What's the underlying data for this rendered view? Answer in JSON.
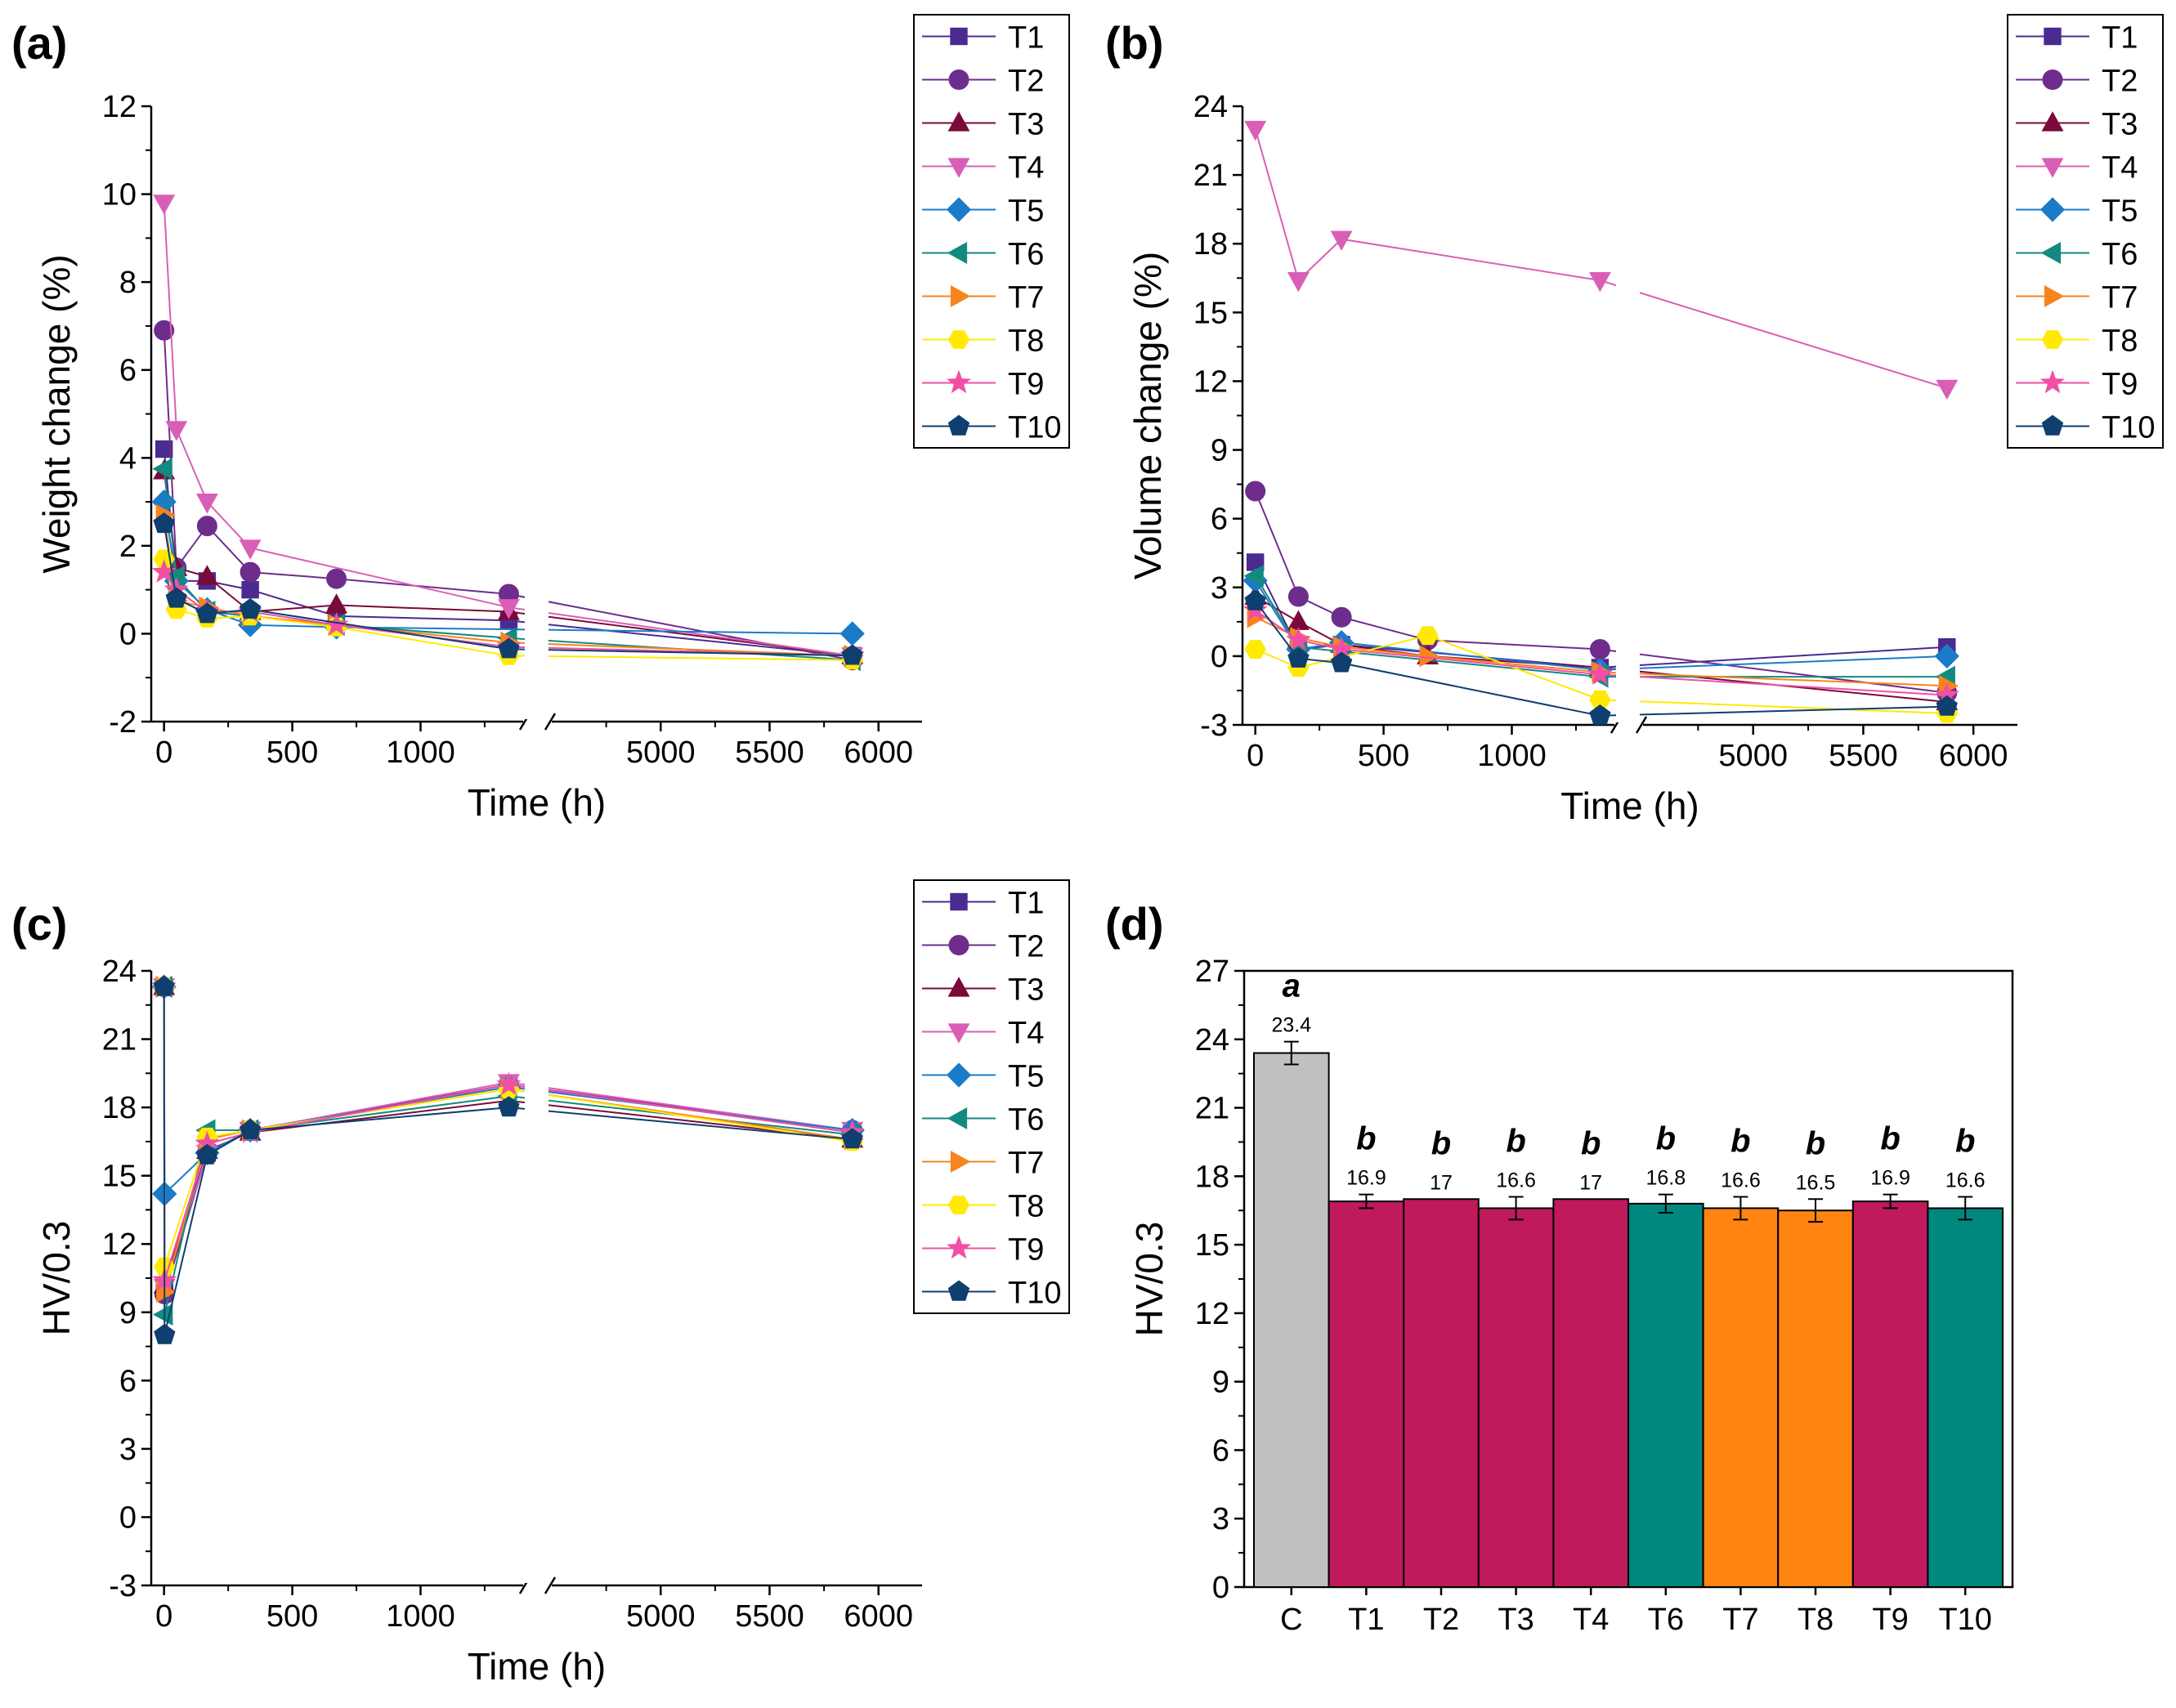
{
  "panels": {
    "a": {
      "label": "(a)"
    },
    "b": {
      "label": "(b)"
    },
    "c": {
      "label": "(c)"
    },
    "d": {
      "label": "(d)"
    }
  },
  "series_styles": [
    {
      "name": "T1",
      "color": "#4B2A91",
      "marker": "square"
    },
    {
      "name": "T2",
      "color": "#6E2D8C",
      "marker": "circle"
    },
    {
      "name": "T3",
      "color": "#7A0A3A",
      "marker": "triangle-up"
    },
    {
      "name": "T4",
      "color": "#D95FB6",
      "marker": "triangle-down"
    },
    {
      "name": "T5",
      "color": "#1A7BC9",
      "marker": "diamond"
    },
    {
      "name": "T6",
      "color": "#138A80",
      "marker": "triangle-left"
    },
    {
      "name": "T7",
      "color": "#F7841F",
      "marker": "triangle-right"
    },
    {
      "name": "T8",
      "color": "#FFEA00",
      "marker": "hexagon"
    },
    {
      "name": "T9",
      "color": "#F04FA5",
      "marker": "star"
    },
    {
      "name": "T10",
      "color": "#0E3F6E",
      "marker": "pentagon"
    }
  ],
  "chart_data": [
    {
      "id": "a",
      "type": "line",
      "xlabel": "Time (h)",
      "ylabel": "Weight change (%)",
      "ylim": [
        -2,
        12
      ],
      "yticks": [
        -2,
        0,
        2,
        4,
        6,
        8,
        10,
        12
      ],
      "x_break": {
        "left_range": [
          -50,
          1400
        ],
        "right_range": [
          4500,
          6200
        ]
      },
      "xticks": [
        "0",
        "500",
        "1000",
        "5000",
        "5500",
        "6000"
      ],
      "xtick_values": [
        0,
        500,
        1000,
        5000,
        5500,
        6000
      ],
      "x": [
        0,
        48,
        168,
        336,
        672,
        1344,
        5880
      ],
      "series": [
        {
          "name": "T1",
          "values": [
            4.2,
            1.2,
            1.2,
            1.0,
            0.4,
            0.3,
            -0.5
          ]
        },
        {
          "name": "T2",
          "values": [
            6.9,
            1.5,
            2.45,
            1.4,
            1.25,
            0.9,
            -0.6
          ]
        },
        {
          "name": "T3",
          "values": [
            3.7,
            1.5,
            1.3,
            0.5,
            0.65,
            0.5,
            -0.5
          ]
        },
        {
          "name": "T4",
          "values": [
            9.8,
            4.65,
            3.0,
            1.95,
            null,
            0.6,
            -0.5
          ]
        },
        {
          "name": "T5",
          "values": [
            3.0,
            1.2,
            0.55,
            0.2,
            0.15,
            null,
            0.0
          ]
        },
        {
          "name": "T6",
          "values": [
            3.75,
            1.3,
            0.5,
            0.4,
            0.2,
            -0.1,
            -0.6
          ]
        },
        {
          "name": "T7",
          "values": [
            2.7,
            0.75,
            0.6,
            0.4,
            0.2,
            -0.2,
            -0.5
          ]
        },
        {
          "name": "T8",
          "values": [
            1.7,
            0.55,
            0.35,
            0.4,
            0.15,
            -0.5,
            -0.6
          ]
        },
        {
          "name": "T9",
          "values": [
            1.4,
            1.0,
            0.5,
            0.5,
            0.2,
            -0.3,
            -0.5
          ]
        },
        {
          "name": "T10",
          "values": [
            2.5,
            0.8,
            0.45,
            0.55,
            null,
            -0.35,
            -0.5
          ]
        }
      ]
    },
    {
      "id": "b",
      "type": "line",
      "xlabel": "Time (h)",
      "ylabel": "Volume change (%)",
      "ylim": [
        -3,
        24
      ],
      "yticks": [
        -3,
        0,
        3,
        6,
        9,
        12,
        15,
        18,
        21,
        24
      ],
      "x_break": {
        "left_range": [
          -50,
          1400
        ],
        "right_range": [
          4500,
          6200
        ]
      },
      "xticks": [
        "0",
        "500",
        "1000",
        "5000",
        "5500",
        "6000"
      ],
      "xtick_values": [
        0,
        500,
        1000,
        5000,
        5500,
        6000
      ],
      "x": [
        0,
        168,
        336,
        672,
        1344,
        5880
      ],
      "series": [
        {
          "name": "T1",
          "values": [
            4.1,
            0.3,
            0.5,
            null,
            -0.5,
            0.4
          ]
        },
        {
          "name": "T2",
          "values": [
            7.2,
            2.6,
            1.7,
            0.7,
            0.3,
            -1.6
          ]
        },
        {
          "name": "T3",
          "values": [
            2.6,
            1.5,
            0.5,
            0.0,
            -0.5,
            -2.0
          ]
        },
        {
          "name": "T4",
          "values": [
            23.0,
            16.4,
            18.2,
            null,
            16.4,
            11.7
          ]
        },
        {
          "name": "T5",
          "values": [
            3.3,
            0.3,
            0.6,
            null,
            -0.6,
            0.0
          ]
        },
        {
          "name": "T6",
          "values": [
            3.5,
            0.4,
            0.2,
            null,
            -0.9,
            -0.9
          ]
        },
        {
          "name": "T7",
          "values": [
            1.7,
            0.8,
            0.4,
            0.0,
            -0.7,
            -1.3
          ]
        },
        {
          "name": "T8",
          "values": [
            0.3,
            -0.5,
            null,
            0.9,
            -1.9,
            -2.5
          ]
        },
        {
          "name": "T9",
          "values": [
            2.0,
            0.7,
            0.3,
            null,
            -0.8,
            -1.7
          ]
        },
        {
          "name": "T10",
          "values": [
            2.4,
            -0.1,
            -0.3,
            null,
            -2.6,
            -2.2
          ]
        }
      ]
    },
    {
      "id": "c",
      "type": "line",
      "xlabel": "Time (h)",
      "ylabel": "HV/0.3",
      "ylim": [
        -3,
        24
      ],
      "yticks": [
        -3,
        0,
        3,
        6,
        9,
        12,
        15,
        18,
        21,
        24
      ],
      "x_break": {
        "left_range": [
          -50,
          1400
        ],
        "right_range": [
          4500,
          6200
        ]
      },
      "xticks": [
        "0",
        "500",
        "1000",
        "5000",
        "5500",
        "6000"
      ],
      "xtick_values": [
        0,
        500,
        1000,
        5000,
        5500,
        6000
      ],
      "x": [
        0,
        2,
        168,
        336,
        1344,
        5880
      ],
      "series": [
        {
          "name": "T1",
          "values": [
            23.3,
            10.0,
            16.0,
            17.0,
            19.0,
            16.9
          ]
        },
        {
          "name": "T2",
          "values": [
            23.3,
            9.8,
            16.0,
            17.0,
            19.0,
            17.0
          ]
        },
        {
          "name": "T3",
          "values": [
            23.3,
            10.2,
            16.1,
            16.9,
            18.3,
            16.6
          ]
        },
        {
          "name": "T4",
          "values": [
            23.3,
            10.1,
            16.0,
            17.0,
            19.1,
            17.0
          ]
        },
        {
          "name": "T5",
          "values": [
            23.3,
            14.2,
            16.0,
            17.0,
            18.9,
            17.0
          ]
        },
        {
          "name": "T6",
          "values": [
            23.3,
            8.9,
            17.0,
            17.0,
            18.5,
            16.8
          ]
        },
        {
          "name": "T7",
          "values": [
            23.3,
            9.9,
            16.6,
            17.0,
            18.8,
            16.6
          ]
        },
        {
          "name": "T8",
          "values": [
            23.3,
            11.0,
            16.7,
            17.0,
            18.8,
            16.5
          ]
        },
        {
          "name": "T9",
          "values": [
            23.3,
            10.4,
            16.4,
            16.9,
            19.0,
            16.9
          ]
        },
        {
          "name": "T10",
          "values": [
            23.3,
            8.0,
            15.9,
            17.0,
            18.0,
            16.6
          ]
        }
      ]
    },
    {
      "id": "d",
      "type": "bar",
      "xlabel": "",
      "ylabel": "HV/0.3",
      "ylim": [
        0,
        27
      ],
      "yticks": [
        0,
        3,
        6,
        9,
        12,
        15,
        18,
        21,
        24,
        27
      ],
      "categories": [
        "C",
        "T1",
        "T2",
        "T3",
        "T4",
        "T6",
        "T7",
        "T8",
        "T9",
        "T10"
      ],
      "values": [
        23.4,
        16.9,
        17,
        16.6,
        17,
        16.8,
        16.6,
        16.5,
        16.9,
        16.6
      ],
      "value_labels": [
        "23.4",
        "16.9",
        "17",
        "16.6",
        "17",
        "16.8",
        "16.6",
        "16.5",
        "16.9",
        "16.6"
      ],
      "errors": [
        0.5,
        0.3,
        0.0,
        0.5,
        0.0,
        0.4,
        0.5,
        0.5,
        0.3,
        0.5
      ],
      "letters": [
        "a",
        "b",
        "b",
        "b",
        "b",
        "b",
        "b",
        "b",
        "b",
        "b"
      ],
      "colors": [
        "#C0C0C0",
        "#BE1A5C",
        "#BE1A5C",
        "#BE1A5C",
        "#BE1A5C",
        "#00877E",
        "#FF8412",
        "#FF8412",
        "#BE1A5C",
        "#00877E"
      ]
    }
  ]
}
